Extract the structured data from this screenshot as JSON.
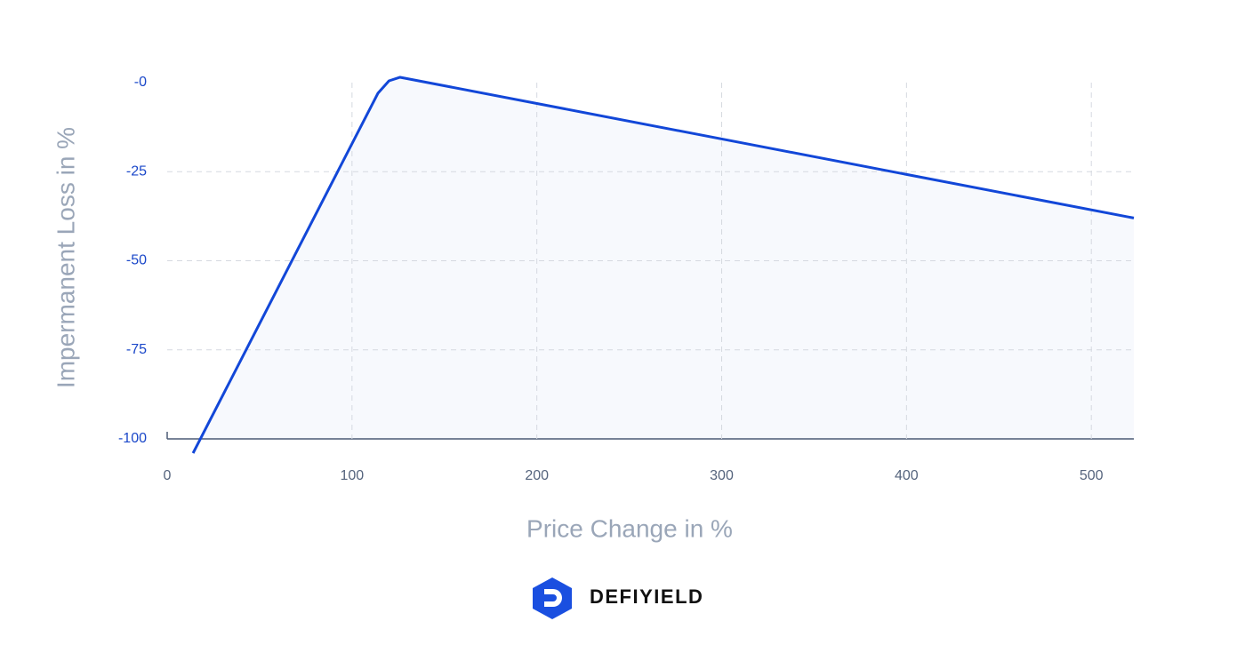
{
  "chart_data": {
    "type": "line",
    "x_label": "Price Change in %",
    "y_label": "Impermanent Loss in %",
    "x": [
      14,
      114,
      120,
      126,
      523
    ],
    "series": [
      {
        "color": "#1247d8",
        "values": [
          -104,
          -3,
          0.5,
          1.5,
          -38
        ]
      }
    ],
    "xlim": [
      0,
      523
    ],
    "ylim": [
      -100,
      0
    ],
    "xticks": [
      0,
      100,
      200,
      300,
      400,
      500
    ],
    "yticks": [
      {
        "value": 0,
        "label": "-0"
      },
      -25,
      -50,
      -75,
      -100
    ],
    "grid": true,
    "fill": "#f7f9fd"
  },
  "brand": "DEFIYIELD"
}
